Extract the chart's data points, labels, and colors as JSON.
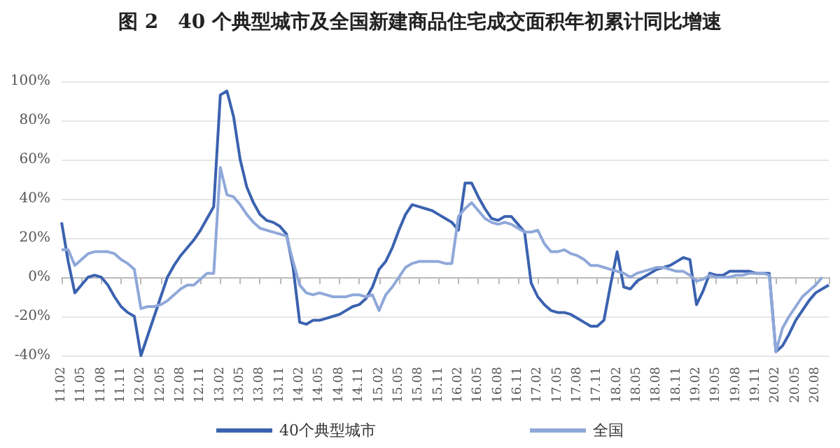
{
  "chart_data": {
    "type": "line",
    "title": "图 2　40 个典型城市及全国新建商品住宅成交面积年初累计同比增速",
    "categories": [
      "11.02",
      null,
      null,
      "11.05",
      null,
      null,
      "11.08",
      null,
      null,
      "11.11",
      null,
      null,
      "12.02",
      null,
      null,
      "12.05",
      null,
      null,
      "12.08",
      null,
      null,
      "12.11",
      null,
      null,
      "13.02",
      null,
      null,
      "13.05",
      null,
      null,
      "13.08",
      null,
      null,
      "13.11",
      null,
      null,
      "14.02",
      null,
      null,
      "14.05",
      null,
      null,
      "14.08",
      null,
      null,
      "14.11",
      null,
      null,
      "15.02",
      null,
      null,
      "15.05",
      null,
      null,
      "15.08",
      null,
      null,
      "15.11",
      null,
      null,
      "16.02",
      null,
      null,
      "16.05",
      null,
      null,
      "16.08",
      null,
      null,
      "16.11",
      null,
      null,
      "17.02",
      null,
      null,
      "17.05",
      null,
      null,
      "17.08",
      null,
      null,
      "17.11",
      null,
      null,
      "18.02",
      null,
      null,
      "18.05",
      null,
      null,
      "18.08",
      null,
      null,
      "18.11",
      null,
      null,
      "19.02",
      null,
      null,
      "19.05",
      null,
      null,
      "19.08",
      null,
      null,
      "19.11",
      null,
      null,
      "20.02",
      null,
      null,
      "20.05",
      null,
      null,
      "20.08",
      null,
      null
    ],
    "series": [
      {
        "name": "40个典型城市",
        "color": "#3b62b0",
        "values": [
          28,
          8,
          -8,
          -4,
          0,
          1,
          0,
          -4,
          -10,
          -15,
          -18,
          -20,
          -40,
          -30,
          -20,
          -10,
          0,
          6,
          11,
          15,
          19,
          24,
          30,
          36,
          93,
          95,
          82,
          60,
          46,
          38,
          32,
          29,
          28,
          26,
          22,
          5,
          -23,
          -24,
          -22,
          -22,
          -21,
          -20,
          -19,
          -17,
          -15,
          -14,
          -11,
          -5,
          4,
          8,
          15,
          24,
          32,
          37,
          36,
          35,
          34,
          32,
          30,
          28,
          24,
          48,
          48,
          41,
          35,
          30,
          29,
          31,
          31,
          27,
          23,
          -3,
          -10,
          -14,
          -17,
          -18,
          -18,
          -19,
          -21,
          -23,
          -25,
          -25,
          -22,
          -4,
          13,
          -5,
          -6,
          -2,
          0,
          2,
          4,
          5,
          6,
          8,
          10,
          9,
          -14,
          -7,
          2,
          1,
          1,
          3,
          3,
          3,
          3,
          2,
          2,
          2,
          -38,
          -35,
          -29,
          -22,
          -17,
          -12,
          -8,
          -6,
          -4
        ]
      },
      {
        "name": "全国",
        "color": "#8fa8d9",
        "values": [
          14,
          14,
          6,
          9,
          12,
          13,
          13,
          13,
          12,
          9,
          7,
          4,
          -16,
          -15,
          -15,
          -14,
          -12,
          -9,
          -6,
          -4,
          -4,
          -1,
          2,
          2,
          56,
          42,
          41,
          37,
          32,
          28,
          25,
          24,
          23,
          22,
          21,
          8,
          -4,
          -8,
          -9,
          -8,
          -9,
          -10,
          -10,
          -10,
          -9,
          -9,
          -10,
          -9,
          -17,
          -9,
          -5,
          0,
          5,
          7,
          8,
          8,
          8,
          8,
          7,
          7,
          31,
          35,
          38,
          34,
          30,
          28,
          27,
          28,
          27,
          25,
          23,
          23,
          24,
          17,
          13,
          13,
          14,
          12,
          11,
          9,
          6,
          6,
          5,
          4,
          3,
          2,
          0,
          2,
          3,
          4,
          5,
          5,
          4,
          3,
          3,
          1,
          -2,
          -1,
          1,
          0,
          0,
          0,
          1,
          1,
          2,
          2,
          2,
          1,
          -38,
          -26,
          -20,
          -15,
          -10,
          -7,
          -4,
          0,
          null
        ]
      }
    ],
    "ylim": [
      -40,
      100
    ],
    "yticks": [
      {
        "value": -40,
        "label": "-40%"
      },
      {
        "value": -20,
        "label": "-20%"
      },
      {
        "value": 0,
        "label": "0%"
      },
      {
        "value": 20,
        "label": "20%"
      },
      {
        "value": 40,
        "label": "40%"
      },
      {
        "value": 60,
        "label": "60%"
      },
      {
        "value": 80,
        "label": "80%"
      },
      {
        "value": 100,
        "label": "100%"
      }
    ],
    "grid": "y",
    "legend": "bottom",
    "marker": "none",
    "line_style": "solid"
  }
}
